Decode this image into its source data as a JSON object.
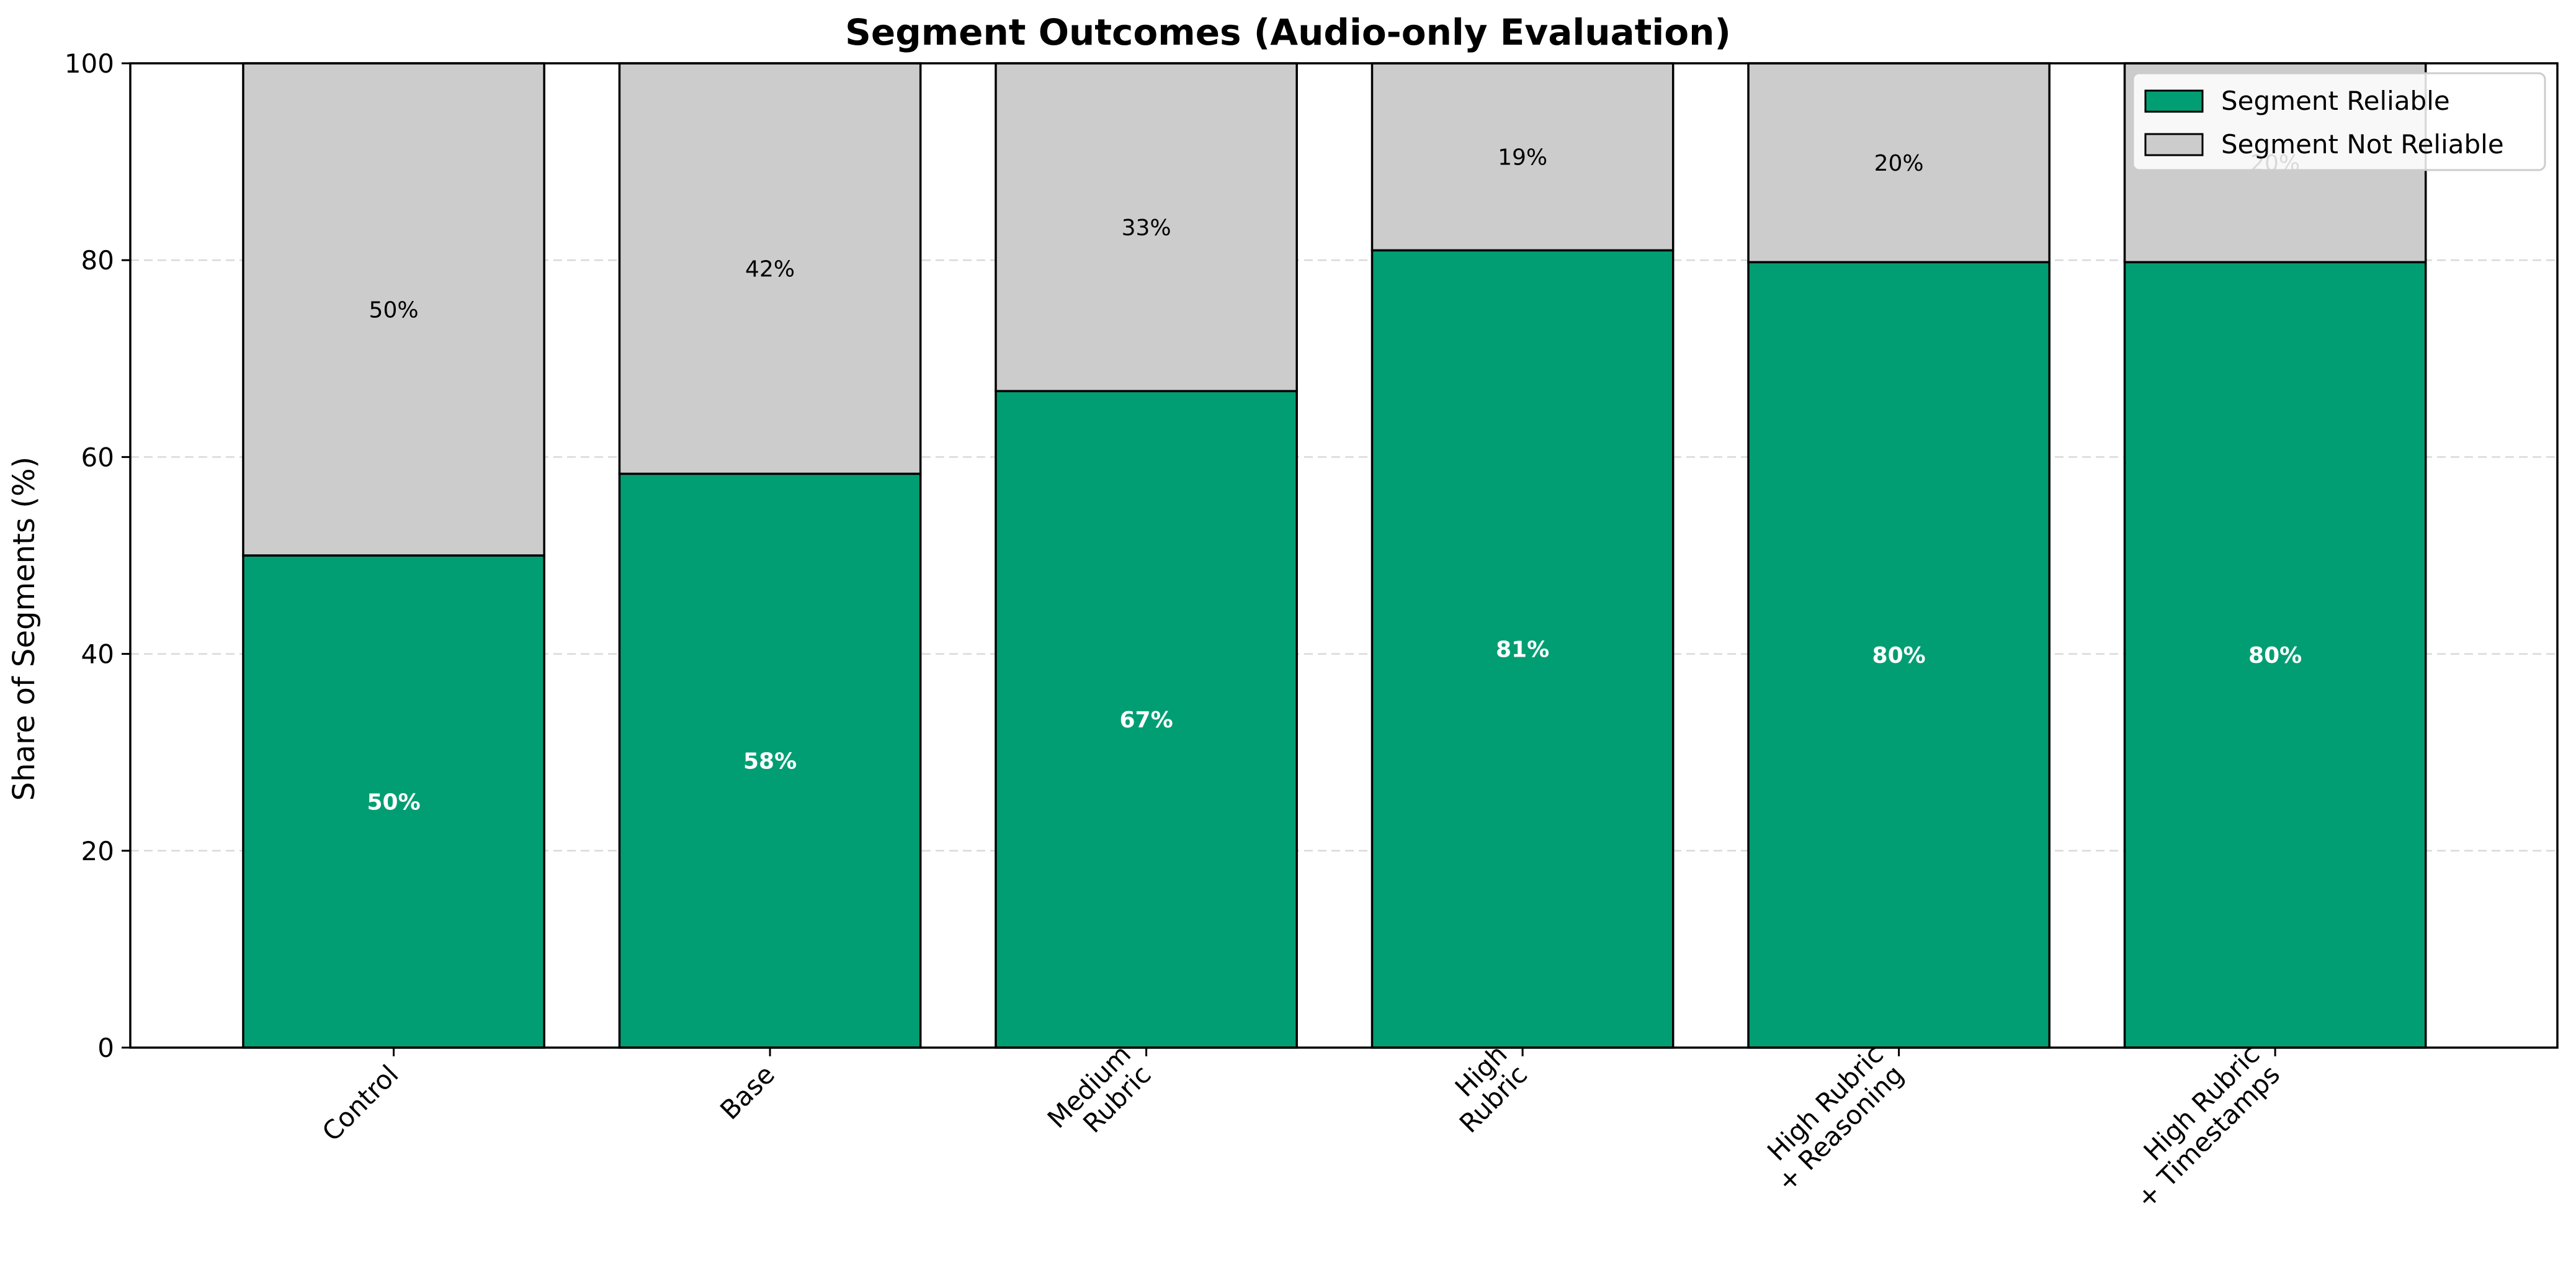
{
  "chart_data": {
    "type": "bar",
    "stacked": true,
    "title": "Segment Outcomes (Audio-only Evaluation)",
    "xlabel": "",
    "ylabel": "Share of Segments (%)",
    "ylim": [
      0,
      100
    ],
    "yticks": [
      0,
      20,
      40,
      60,
      80,
      100
    ],
    "grid": "horizontal dashed",
    "legend_position": "top-right",
    "categories": [
      [
        "Control"
      ],
      [
        "Base"
      ],
      [
        "Medium",
        "Rubric"
      ],
      [
        "High",
        "Rubric"
      ],
      [
        "High Rubric",
        "+ Reasoning"
      ],
      [
        "High Rubric",
        "+ Timestamps"
      ]
    ],
    "series": [
      {
        "name": "Segment Reliable",
        "color": "#029e73",
        "label_color": "#ffffff",
        "values": [
          50,
          58.3,
          66.7,
          81,
          79.8,
          79.8
        ],
        "labels": [
          "50%",
          "58%",
          "67%",
          "81%",
          "80%",
          "80%"
        ]
      },
      {
        "name": "Segment Not Reliable",
        "color": "#cccccc",
        "label_color": "#000000",
        "values": [
          50,
          41.7,
          33.3,
          19,
          20.2,
          20.2
        ],
        "labels": [
          "50%",
          "42%",
          "33%",
          "19%",
          "20%",
          "20%"
        ]
      }
    ]
  }
}
